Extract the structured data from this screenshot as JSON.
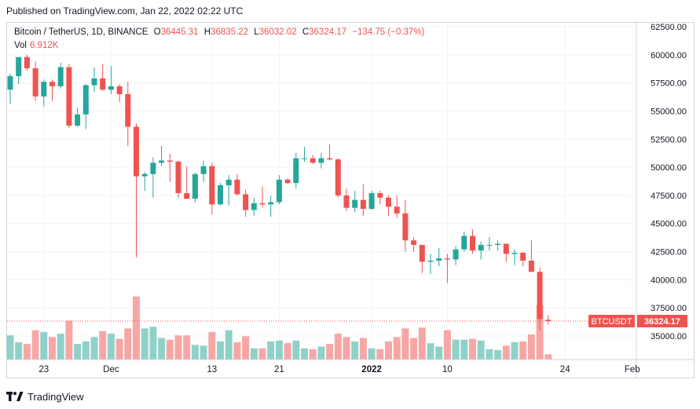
{
  "published": "Published on TradingView.com, Jan 22, 2022 02:22 UTC",
  "footer": {
    "brand": "TradingView",
    "logo_icon": "tradingview-logo-icon"
  },
  "legend": {
    "symbol": "Bitcoin / TetherUS, 1D, BINANCE",
    "open_label": "O",
    "open": "36445.31",
    "high_label": "H",
    "high": "36835.22",
    "low_label": "L",
    "low": "36032.02",
    "close_label": "C",
    "close": "36324.17",
    "change": "−134.75 (−0.37%)",
    "vol_label": "Vol",
    "vol": "6.912K"
  },
  "price_tag": {
    "symbol": "BTCUSDT",
    "price": "36324.17"
  },
  "colors": {
    "up": "#26a69a",
    "down": "#ef5350",
    "vol_up": "#8fd1c8",
    "vol_down": "#f6a7a5",
    "grid": "#f0f3fa",
    "axis_text": "#131722"
  },
  "chart_data": {
    "type": "candlestick",
    "title": "Bitcoin / TetherUS, 1D, BINANCE",
    "yaxis": {
      "ticks": [
        35000,
        37500,
        40000,
        42500,
        45000,
        47500,
        50000,
        52500,
        55000,
        57500,
        60000,
        62500
      ],
      "labels": [
        "35000.00",
        "37500.00",
        "40000.00",
        "42500.00",
        "45000.00",
        "47500.00",
        "50000.00",
        "52500.00",
        "55000.00",
        "57500.00",
        "60000.00",
        "62500.00"
      ],
      "range": [
        33000,
        63000
      ]
    },
    "xaxis": {
      "ticks": [
        {
          "label": "23",
          "index": 4
        },
        {
          "label": "Dec",
          "index": 12
        },
        {
          "label": "13",
          "index": 24
        },
        {
          "label": "21",
          "index": 32
        },
        {
          "label": "2022",
          "index": 43
        },
        {
          "label": "10",
          "index": 52
        },
        {
          "label": "24",
          "index": 66
        },
        {
          "label": "Feb",
          "index": 74
        }
      ]
    },
    "grid": true,
    "last_price": 36324.17,
    "candles": [
      {
        "date": "2021-11-19",
        "o": 56900,
        "h": 58300,
        "l": 55600,
        "c": 58100,
        "v": 0.28
      },
      {
        "date": "2021-11-20",
        "o": 58100,
        "h": 59800,
        "l": 57400,
        "c": 59800,
        "v": 0.2
      },
      {
        "date": "2021-11-21",
        "o": 59800,
        "h": 60000,
        "l": 58600,
        "c": 58800,
        "v": 0.18
      },
      {
        "date": "2021-11-22",
        "o": 58800,
        "h": 59400,
        "l": 55900,
        "c": 56300,
        "v": 0.34
      },
      {
        "date": "2021-11-23",
        "o": 56300,
        "h": 57800,
        "l": 55400,
        "c": 57600,
        "v": 0.32
      },
      {
        "date": "2021-11-24",
        "o": 57600,
        "h": 57800,
        "l": 55900,
        "c": 57200,
        "v": 0.26
      },
      {
        "date": "2021-11-25",
        "o": 57200,
        "h": 59300,
        "l": 57000,
        "c": 58900,
        "v": 0.3
      },
      {
        "date": "2021-11-26",
        "o": 58900,
        "h": 59200,
        "l": 53500,
        "c": 53700,
        "v": 0.45
      },
      {
        "date": "2021-11-27",
        "o": 53700,
        "h": 55300,
        "l": 53600,
        "c": 54700,
        "v": 0.18
      },
      {
        "date": "2021-11-28",
        "o": 54700,
        "h": 57400,
        "l": 53400,
        "c": 57300,
        "v": 0.21
      },
      {
        "date": "2021-11-29",
        "o": 57300,
        "h": 58900,
        "l": 56700,
        "c": 57900,
        "v": 0.26
      },
      {
        "date": "2021-11-30",
        "o": 57900,
        "h": 59200,
        "l": 56800,
        "c": 56900,
        "v": 0.33
      },
      {
        "date": "2021-12-01",
        "o": 56900,
        "h": 59000,
        "l": 56500,
        "c": 57200,
        "v": 0.3
      },
      {
        "date": "2021-12-02",
        "o": 57200,
        "h": 57400,
        "l": 55800,
        "c": 56500,
        "v": 0.24
      },
      {
        "date": "2021-12-03",
        "o": 56500,
        "h": 57600,
        "l": 51900,
        "c": 53600,
        "v": 0.36
      },
      {
        "date": "2021-12-04",
        "o": 53600,
        "h": 53900,
        "l": 42000,
        "c": 49200,
        "v": 0.73
      },
      {
        "date": "2021-12-05",
        "o": 49200,
        "h": 49600,
        "l": 47900,
        "c": 49400,
        "v": 0.36
      },
      {
        "date": "2021-12-06",
        "o": 49400,
        "h": 50900,
        "l": 47300,
        "c": 50400,
        "v": 0.38
      },
      {
        "date": "2021-12-07",
        "o": 50400,
        "h": 51900,
        "l": 50100,
        "c": 50600,
        "v": 0.25
      },
      {
        "date": "2021-12-08",
        "o": 50600,
        "h": 51200,
        "l": 48700,
        "c": 50500,
        "v": 0.23
      },
      {
        "date": "2021-12-09",
        "o": 50500,
        "h": 50600,
        "l": 47300,
        "c": 47700,
        "v": 0.28
      },
      {
        "date": "2021-12-10",
        "o": 47700,
        "h": 50100,
        "l": 47300,
        "c": 47200,
        "v": 0.28
      },
      {
        "date": "2021-12-11",
        "o": 47200,
        "h": 49500,
        "l": 46900,
        "c": 49400,
        "v": 0.17
      },
      {
        "date": "2021-12-12",
        "o": 49400,
        "h": 50600,
        "l": 48700,
        "c": 50100,
        "v": 0.16
      },
      {
        "date": "2021-12-13",
        "o": 50100,
        "h": 50400,
        "l": 45800,
        "c": 46700,
        "v": 0.32
      },
      {
        "date": "2021-12-14",
        "o": 46700,
        "h": 48600,
        "l": 46600,
        "c": 48400,
        "v": 0.21
      },
      {
        "date": "2021-12-15",
        "o": 48400,
        "h": 49300,
        "l": 46600,
        "c": 48900,
        "v": 0.34
      },
      {
        "date": "2021-12-16",
        "o": 48900,
        "h": 49400,
        "l": 47500,
        "c": 47600,
        "v": 0.2
      },
      {
        "date": "2021-12-17",
        "o": 47600,
        "h": 48000,
        "l": 45600,
        "c": 46200,
        "v": 0.27
      },
      {
        "date": "2021-12-18",
        "o": 46200,
        "h": 47300,
        "l": 45700,
        "c": 46800,
        "v": 0.13
      },
      {
        "date": "2021-12-19",
        "o": 46800,
        "h": 48300,
        "l": 46400,
        "c": 46700,
        "v": 0.13
      },
      {
        "date": "2021-12-20",
        "o": 46700,
        "h": 47500,
        "l": 45600,
        "c": 46900,
        "v": 0.21
      },
      {
        "date": "2021-12-21",
        "o": 46900,
        "h": 49300,
        "l": 46700,
        "c": 48900,
        "v": 0.22
      },
      {
        "date": "2021-12-22",
        "o": 48900,
        "h": 49000,
        "l": 48500,
        "c": 48600,
        "v": 0.19
      },
      {
        "date": "2021-12-23",
        "o": 48600,
        "h": 51300,
        "l": 48100,
        "c": 50800,
        "v": 0.22
      },
      {
        "date": "2021-12-24",
        "o": 50800,
        "h": 51800,
        "l": 50500,
        "c": 50800,
        "v": 0.13
      },
      {
        "date": "2021-12-25",
        "o": 50800,
        "h": 51100,
        "l": 50300,
        "c": 50400,
        "v": 0.12
      },
      {
        "date": "2021-12-26",
        "o": 50400,
        "h": 51300,
        "l": 49900,
        "c": 50800,
        "v": 0.15
      },
      {
        "date": "2021-12-27",
        "o": 50800,
        "h": 52000,
        "l": 50600,
        "c": 50700,
        "v": 0.18
      },
      {
        "date": "2021-12-28",
        "o": 50700,
        "h": 50800,
        "l": 47300,
        "c": 47500,
        "v": 0.3
      },
      {
        "date": "2021-12-29",
        "o": 47500,
        "h": 48100,
        "l": 46100,
        "c": 46400,
        "v": 0.26
      },
      {
        "date": "2021-12-30",
        "o": 46400,
        "h": 47900,
        "l": 46000,
        "c": 47100,
        "v": 0.21
      },
      {
        "date": "2021-12-31",
        "o": 47100,
        "h": 48500,
        "l": 45700,
        "c": 46300,
        "v": 0.25
      },
      {
        "date": "2022-01-01",
        "o": 46300,
        "h": 47900,
        "l": 46200,
        "c": 47700,
        "v": 0.13
      },
      {
        "date": "2022-01-02",
        "o": 47700,
        "h": 47900,
        "l": 46700,
        "c": 47300,
        "v": 0.12
      },
      {
        "date": "2022-01-03",
        "o": 47300,
        "h": 47500,
        "l": 45700,
        "c": 46500,
        "v": 0.21
      },
      {
        "date": "2022-01-04",
        "o": 46500,
        "h": 47500,
        "l": 45500,
        "c": 45900,
        "v": 0.26
      },
      {
        "date": "2022-01-05",
        "o": 45900,
        "h": 47100,
        "l": 42500,
        "c": 43500,
        "v": 0.36
      },
      {
        "date": "2022-01-06",
        "o": 43500,
        "h": 43800,
        "l": 42500,
        "c": 43100,
        "v": 0.25
      },
      {
        "date": "2022-01-07",
        "o": 43100,
        "h": 43100,
        "l": 40600,
        "c": 41600,
        "v": 0.37
      },
      {
        "date": "2022-01-08",
        "o": 41600,
        "h": 42300,
        "l": 40500,
        "c": 41700,
        "v": 0.19
      },
      {
        "date": "2022-01-09",
        "o": 41700,
        "h": 42800,
        "l": 41200,
        "c": 41900,
        "v": 0.15
      },
      {
        "date": "2022-01-10",
        "o": 41900,
        "h": 42300,
        "l": 39700,
        "c": 41800,
        "v": 0.34
      },
      {
        "date": "2022-01-11",
        "o": 41800,
        "h": 43000,
        "l": 41300,
        "c": 42700,
        "v": 0.23
      },
      {
        "date": "2022-01-12",
        "o": 42700,
        "h": 44300,
        "l": 42500,
        "c": 43900,
        "v": 0.23
      },
      {
        "date": "2022-01-13",
        "o": 43900,
        "h": 44500,
        "l": 42300,
        "c": 42600,
        "v": 0.24
      },
      {
        "date": "2022-01-14",
        "o": 42600,
        "h": 43400,
        "l": 41800,
        "c": 43100,
        "v": 0.22
      },
      {
        "date": "2022-01-15",
        "o": 43100,
        "h": 43800,
        "l": 42600,
        "c": 43100,
        "v": 0.12
      },
      {
        "date": "2022-01-16",
        "o": 43100,
        "h": 43500,
        "l": 42600,
        "c": 43200,
        "v": 0.11
      },
      {
        "date": "2022-01-17",
        "o": 43200,
        "h": 43200,
        "l": 41600,
        "c": 42300,
        "v": 0.16
      },
      {
        "date": "2022-01-18",
        "o": 42300,
        "h": 42700,
        "l": 41300,
        "c": 42400,
        "v": 0.2
      },
      {
        "date": "2022-01-19",
        "o": 42400,
        "h": 42500,
        "l": 41200,
        "c": 41700,
        "v": 0.21
      },
      {
        "date": "2022-01-20",
        "o": 41700,
        "h": 43500,
        "l": 40700,
        "c": 40700,
        "v": 0.29
      },
      {
        "date": "2022-01-21",
        "o": 40700,
        "h": 41100,
        "l": 35500,
        "c": 36500,
        "v": 0.63
      },
      {
        "date": "2022-01-22",
        "o": 36445.31,
        "h": 36835.22,
        "l": 36032.02,
        "c": 36324.17,
        "v": 0.06
      }
    ]
  }
}
